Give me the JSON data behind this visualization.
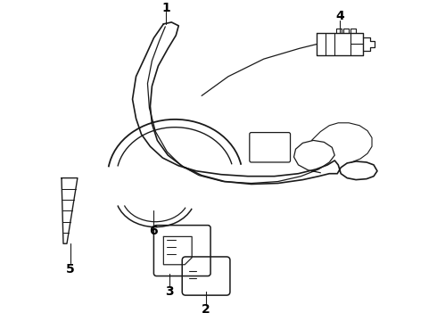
{
  "background_color": "#ffffff",
  "line_color": "#1a1a1a",
  "fig_width": 4.9,
  "fig_height": 3.6,
  "dpi": 100,
  "label_fontsize": 10
}
